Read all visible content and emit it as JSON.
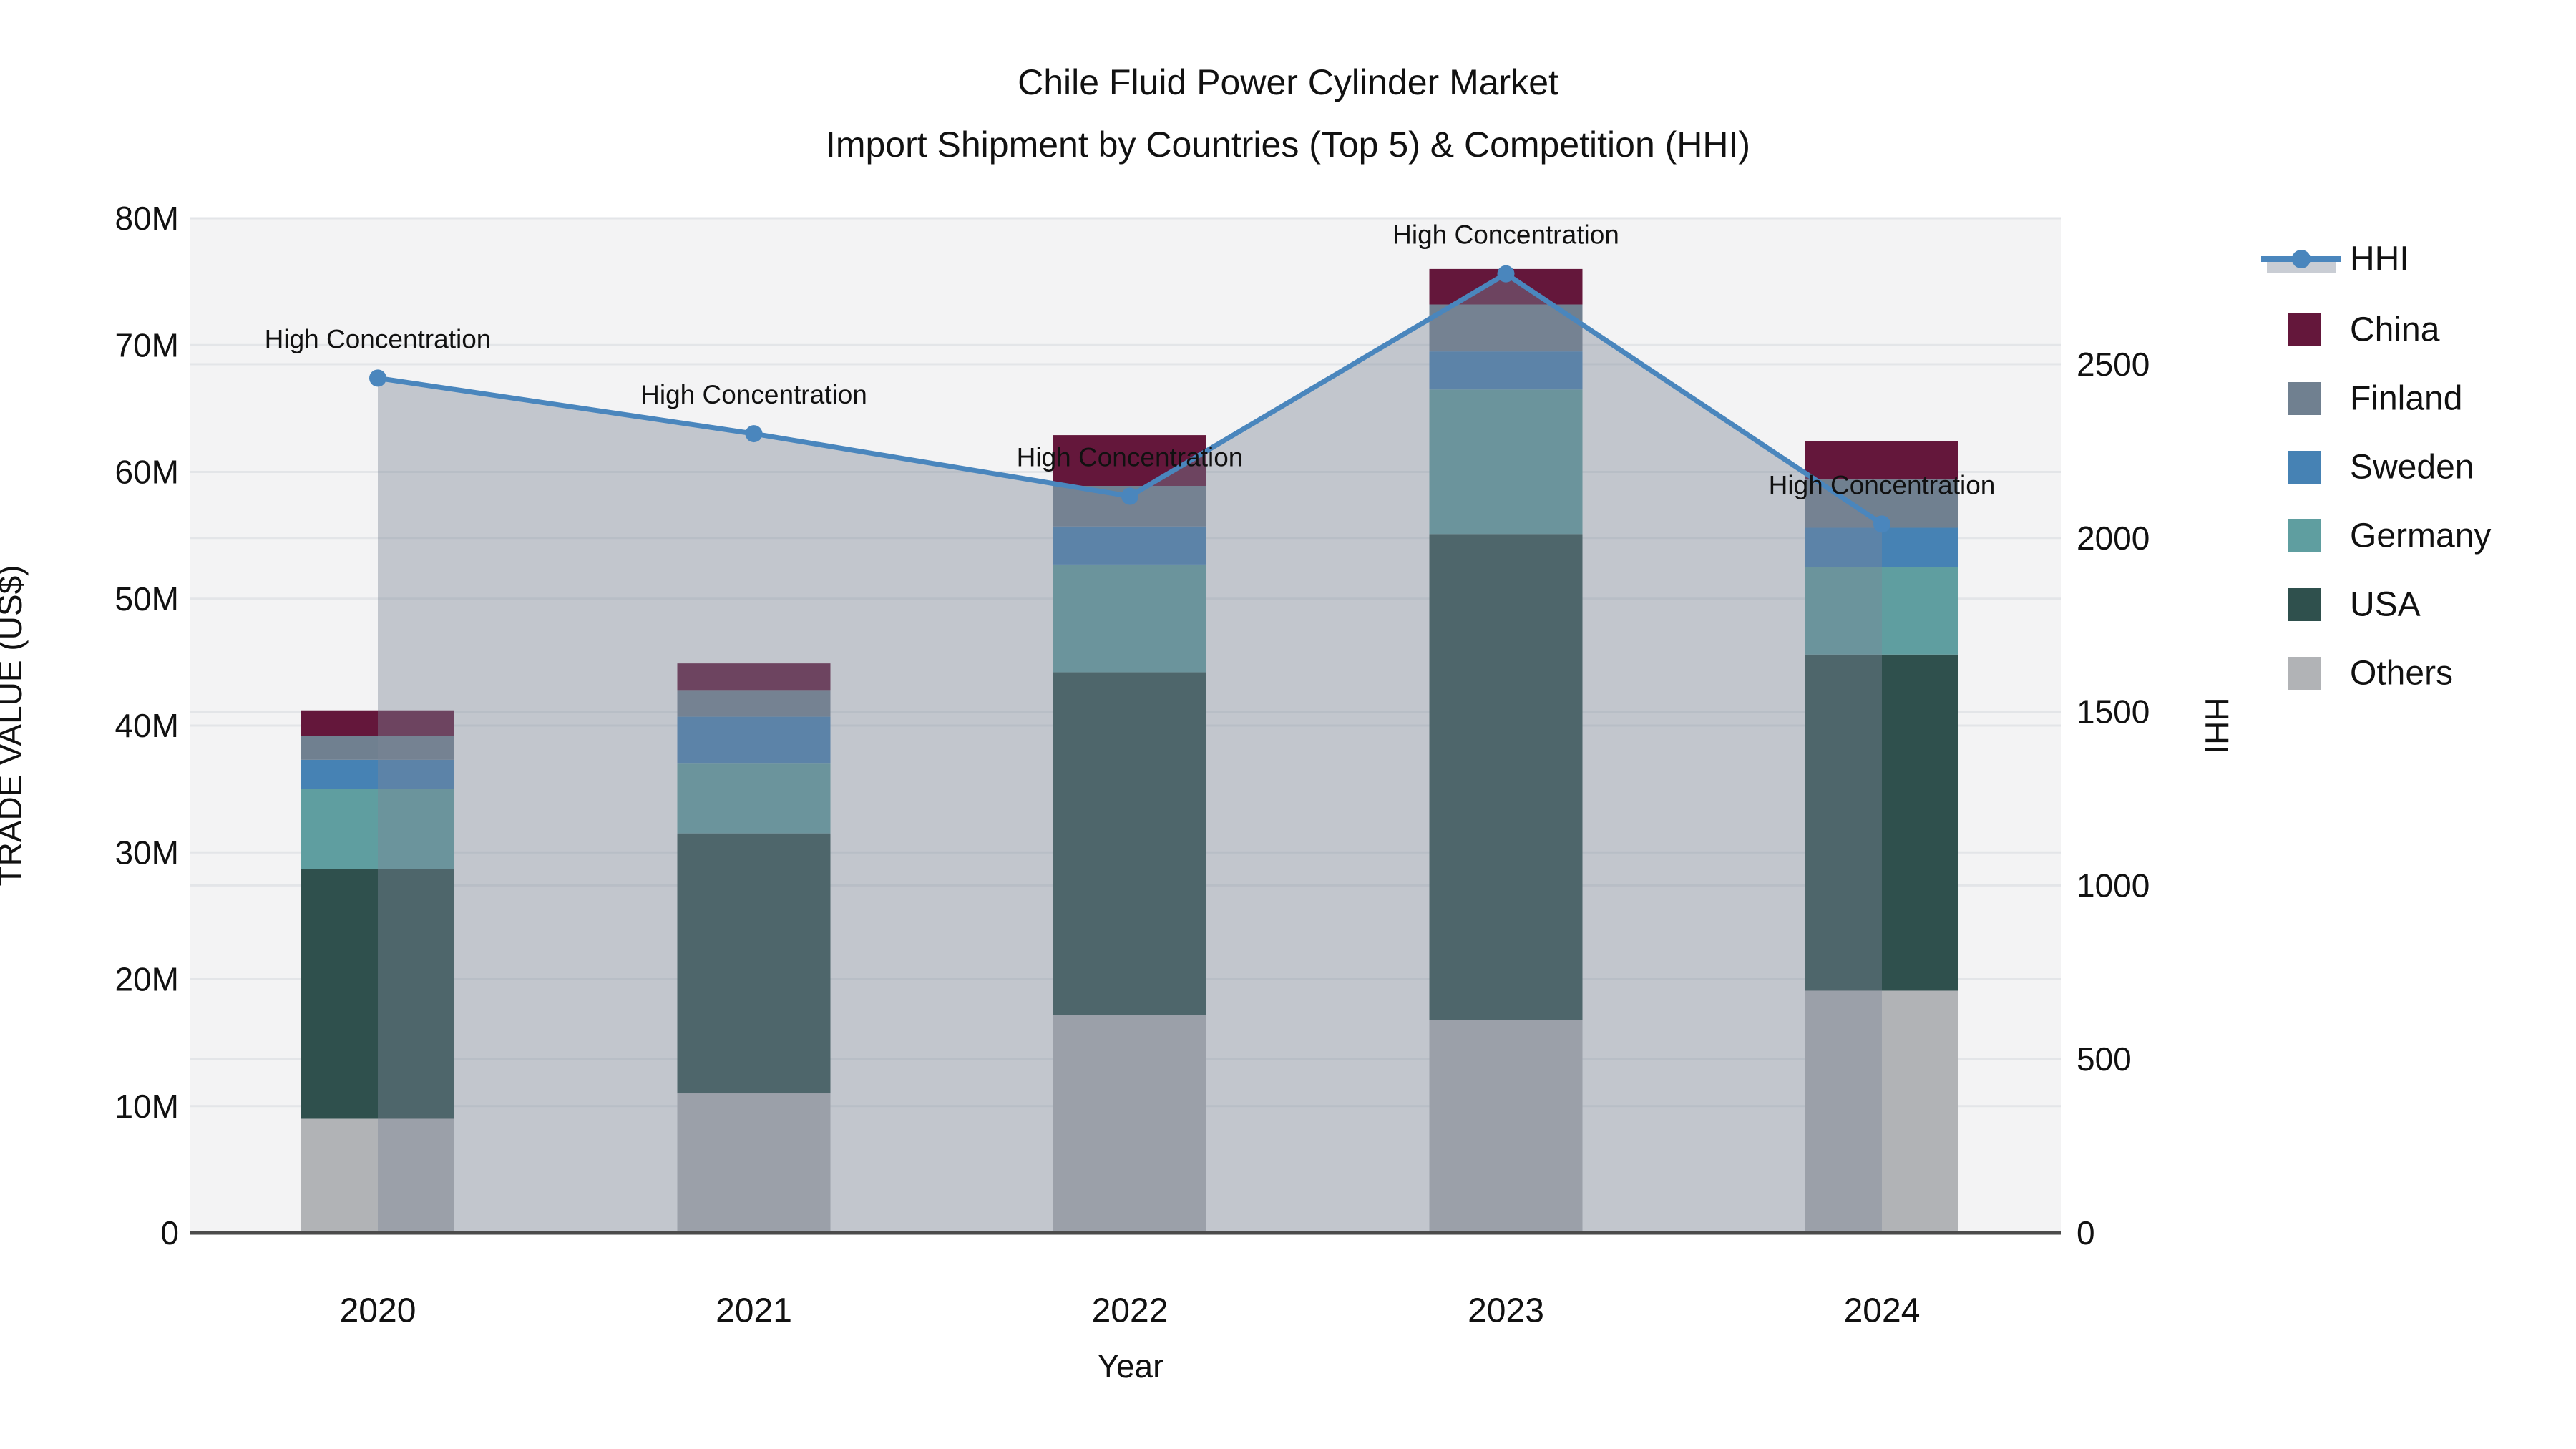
{
  "figure": {
    "background": "#ffffff",
    "plot_background": "#f3f3f4",
    "grid_color": "#e3e5e8",
    "axis_line_color": "#4b4b4b",
    "text_color": "#111111"
  },
  "chart_data": {
    "type": "bar",
    "stacked": true,
    "title_line1": "Chile Fluid Power Cylinder Market",
    "title_line2": "Import Shipment by Countries (Top 5) & Competition (HHI)",
    "xlabel": "Year",
    "categories": [
      "2020",
      "2021",
      "2022",
      "2023",
      "2024"
    ],
    "values_unit": "million US$",
    "series": [
      {
        "name": "China",
        "color": "#64173b",
        "values": [
          2.0,
          2.1,
          4.0,
          2.8,
          3.0
        ]
      },
      {
        "name": "Finland",
        "color": "#708090",
        "values": [
          1.9,
          2.1,
          3.2,
          3.7,
          3.8
        ]
      },
      {
        "name": "Sweden",
        "color": "#4682b4",
        "values": [
          2.3,
          3.7,
          3.0,
          3.0,
          3.1
        ]
      },
      {
        "name": "Germany",
        "color": "#5f9ea0",
        "values": [
          6.3,
          5.5,
          8.5,
          11.4,
          6.9
        ]
      },
      {
        "name": "USA",
        "color": "#2f504d",
        "values": [
          19.7,
          20.5,
          27.0,
          38.3,
          26.5
        ]
      },
      {
        "name": "Others",
        "color": "#b1b3b6",
        "values": [
          9.0,
          11.0,
          17.2,
          16.8,
          19.1
        ]
      }
    ],
    "stack_order_bottom_to_top": [
      "Others",
      "USA",
      "Germany",
      "Sweden",
      "Finland",
      "China"
    ],
    "line_series": {
      "name": "HHI",
      "axis": "right",
      "color": "#4a86bd",
      "fill_color": "rgba(123,133,150,0.41)",
      "values": [
        2460,
        2300,
        2120,
        2760,
        2040
      ]
    },
    "annotations": [
      "High Concentration",
      "High Concentration",
      "High Concentration",
      "High Concentration",
      "High Concentration"
    ],
    "y_left": {
      "label": "TRADE VALUE (US$)",
      "tick_values": [
        0,
        10,
        20,
        30,
        40,
        50,
        60,
        70,
        80
      ],
      "tick_labels": [
        "0",
        "10M",
        "20M",
        "30M",
        "40M",
        "50M",
        "60M",
        "70M",
        "80M"
      ],
      "range": [
        0,
        80
      ]
    },
    "y_right": {
      "label": "HHI",
      "tick_values": [
        0,
        500,
        1000,
        1500,
        2000,
        2500
      ],
      "tick_labels": [
        "0",
        "500",
        "1000",
        "1500",
        "2000",
        "2500"
      ],
      "range": [
        0,
        2920
      ]
    }
  },
  "legend": {
    "items": [
      {
        "label": "HHI",
        "type": "line",
        "color": "#4a86bd"
      },
      {
        "label": "China",
        "type": "swatch",
        "color": "#64173b"
      },
      {
        "label": "Finland",
        "type": "swatch",
        "color": "#708090"
      },
      {
        "label": "Sweden",
        "type": "swatch",
        "color": "#4682b4"
      },
      {
        "label": "Germany",
        "type": "swatch",
        "color": "#5f9ea0"
      },
      {
        "label": "USA",
        "type": "swatch",
        "color": "#2f504d"
      },
      {
        "label": "Others",
        "type": "swatch",
        "color": "#b1b3b6"
      }
    ]
  }
}
